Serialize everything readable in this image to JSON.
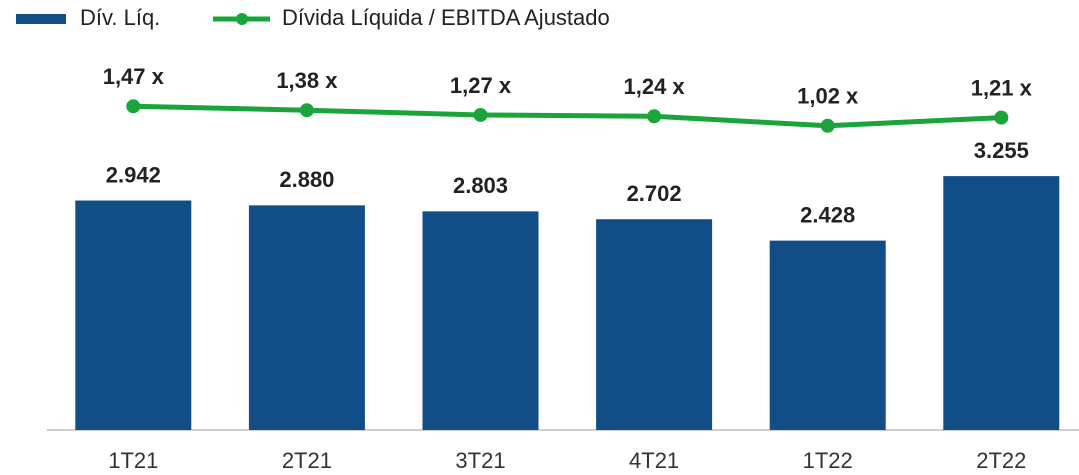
{
  "chart_data": {
    "type": "bar",
    "categories": [
      "1T21",
      "2T21",
      "3T21",
      "4T21",
      "1T22",
      "2T22"
    ],
    "series": [
      {
        "name": "Dív. Líq.",
        "type": "bar",
        "color": "#114d87",
        "values": [
          2942,
          2880,
          2803,
          2702,
          2428,
          3255
        ],
        "value_labels": [
          "2.942",
          "2.880",
          "2.803",
          "2.702",
          "2.428",
          "3.255"
        ]
      },
      {
        "name": "Dívida Líquida / EBITDA Ajustado",
        "type": "line",
        "axis": "y2",
        "color": "#1aa53a",
        "values": [
          1.47,
          1.38,
          1.27,
          1.24,
          1.02,
          1.21
        ],
        "value_labels": [
          "1,47 x",
          "1,38 x",
          "1,27 x",
          "1,24 x",
          "1,02 x",
          "1,21 x"
        ]
      }
    ],
    "ylim": [
      0,
      5000
    ],
    "y2lim": [
      -6,
      3
    ],
    "legend": "top-left"
  }
}
